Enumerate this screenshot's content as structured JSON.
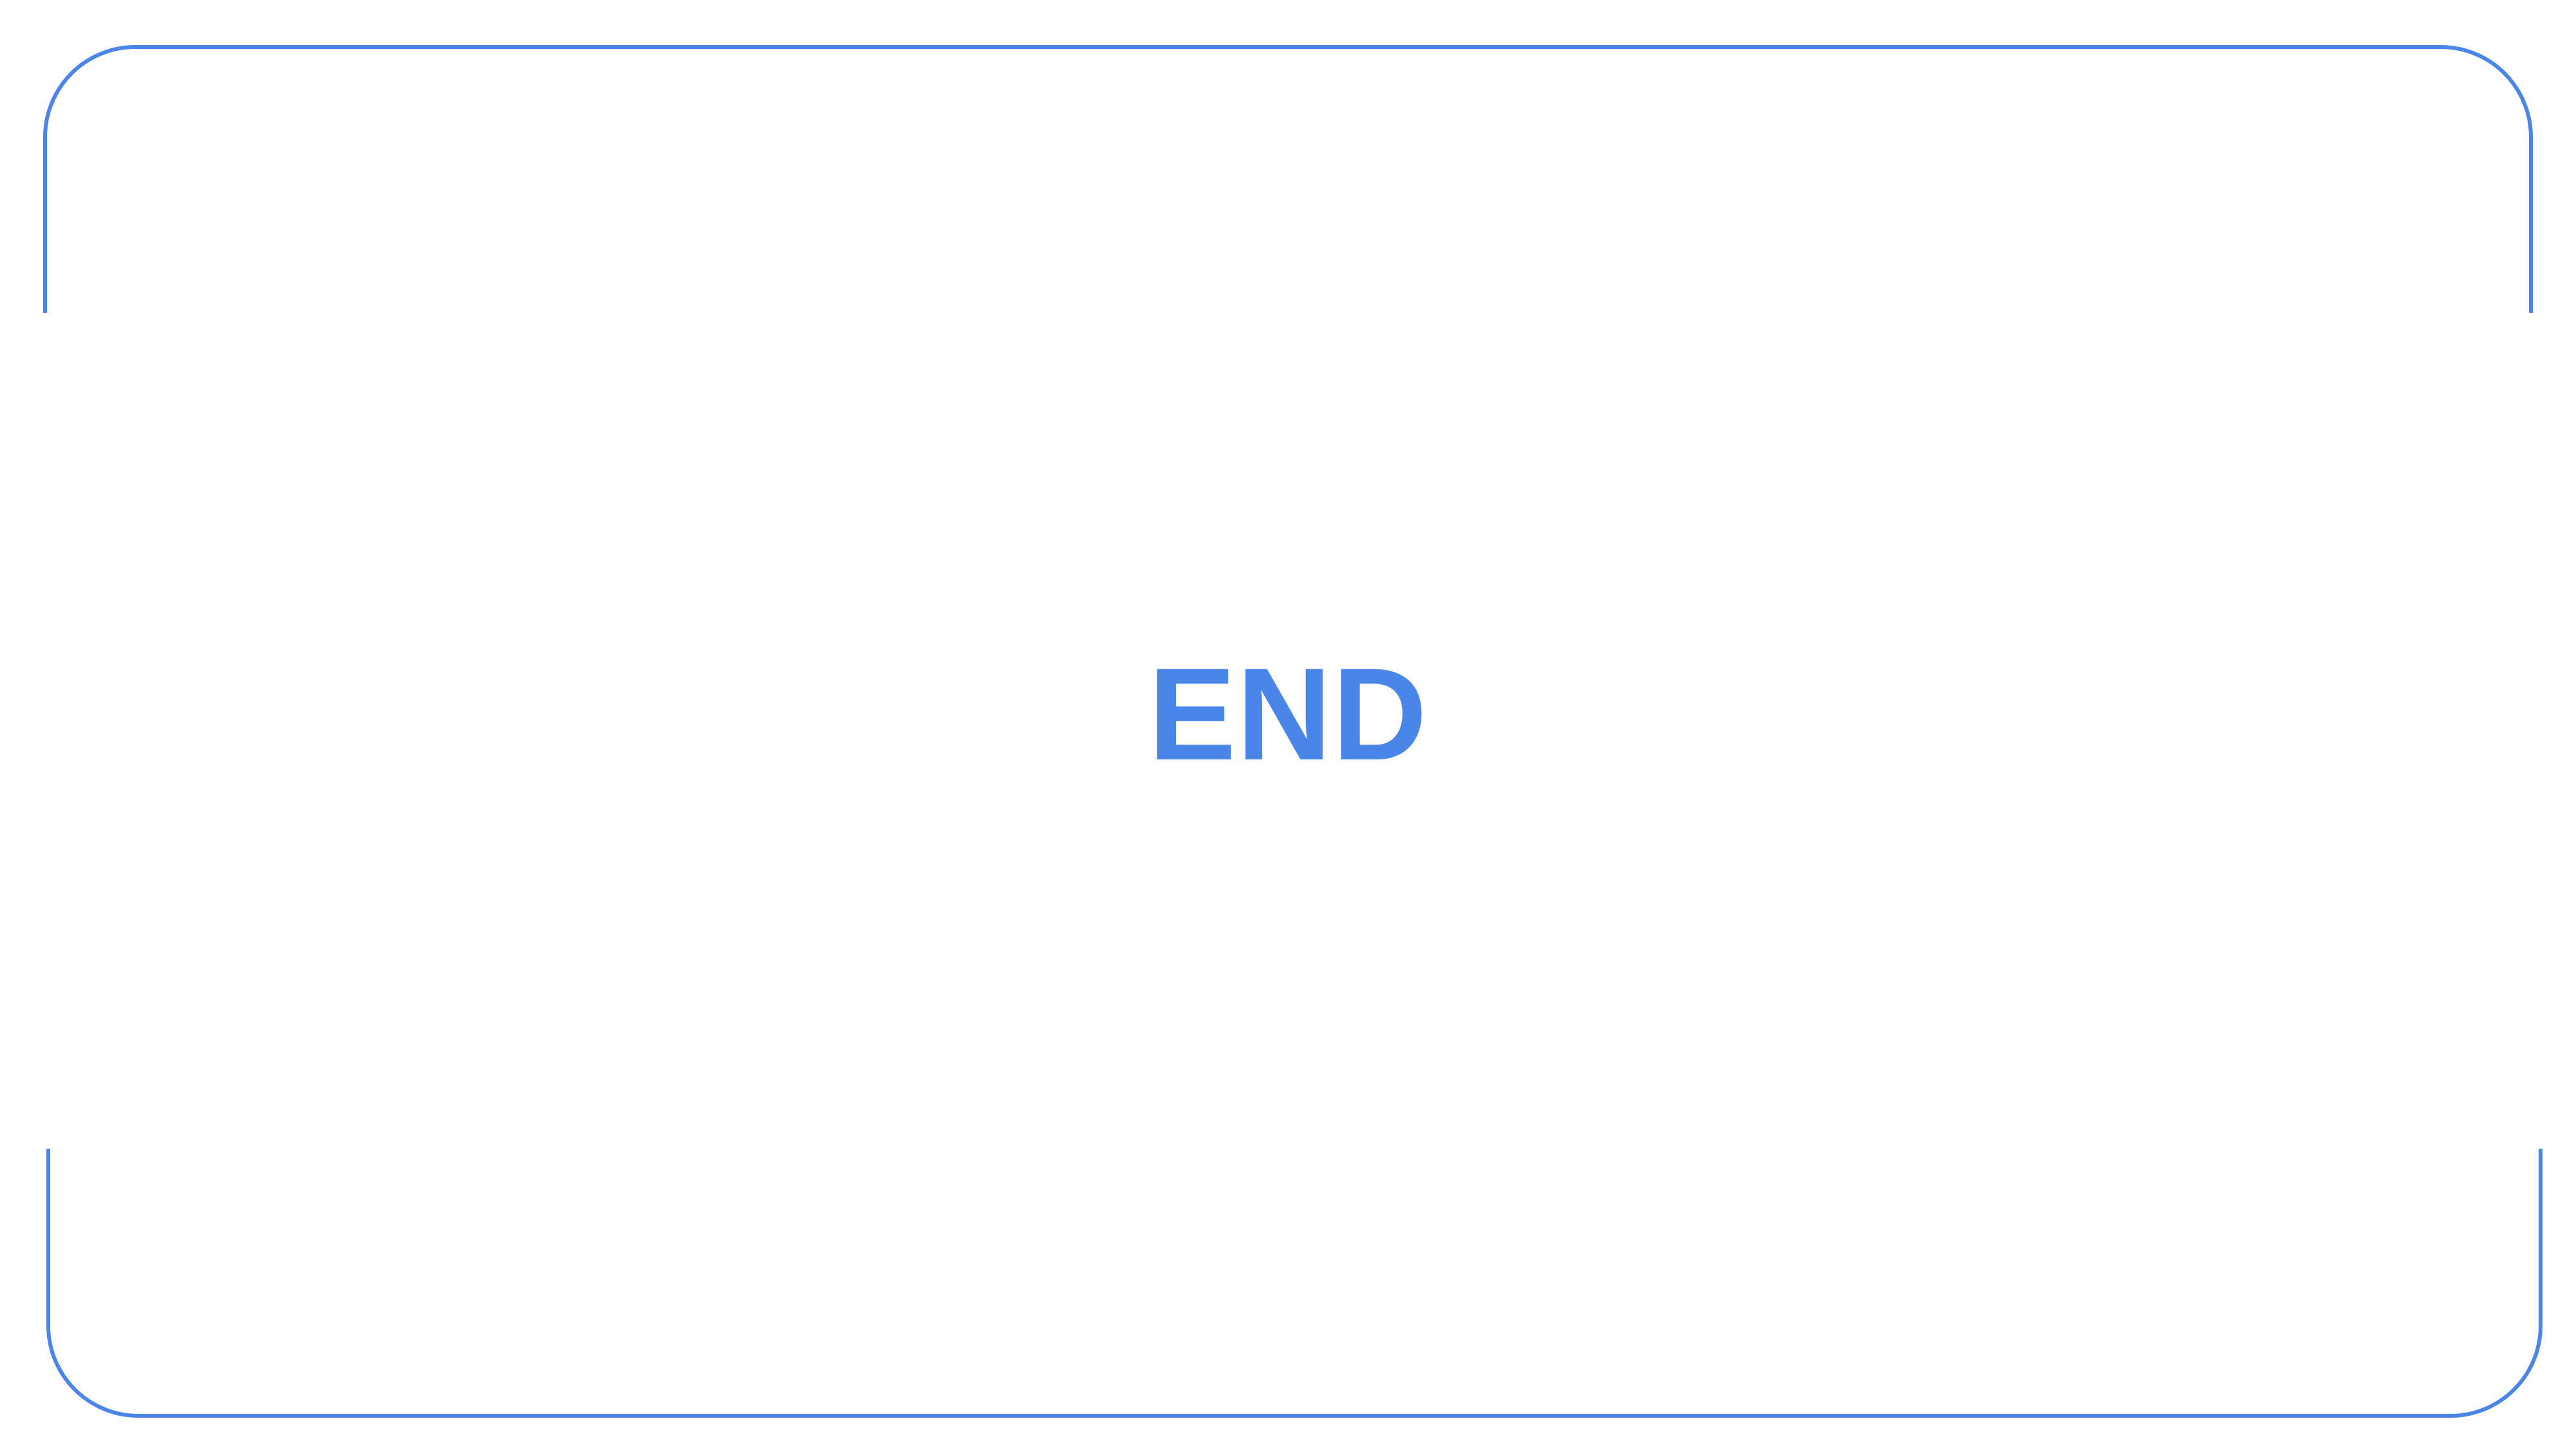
{
  "slide": {
    "title": "END"
  },
  "colors": {
    "accent": "#4a86e8",
    "background": "#fefefe"
  }
}
